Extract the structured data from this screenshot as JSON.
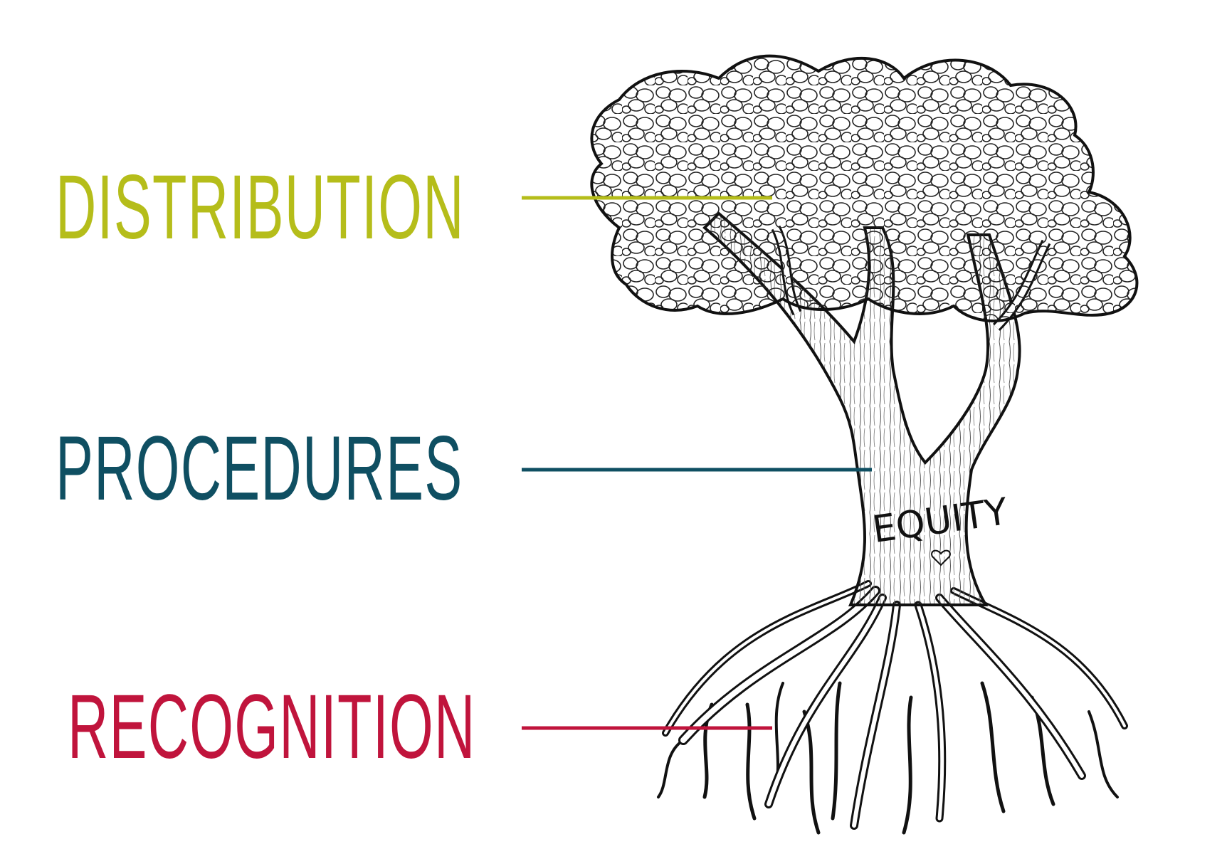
{
  "labels": {
    "distribution": "DISTRIBUTION",
    "procedures": "PROCEDURES",
    "recognition": "RECOGNITION"
  },
  "tree": {
    "trunk_text": "EQUITY"
  },
  "colors": {
    "distribution": "#b5bd1a",
    "procedures": "#0f4f62",
    "recognition": "#c0143c",
    "ink": "#111111"
  }
}
